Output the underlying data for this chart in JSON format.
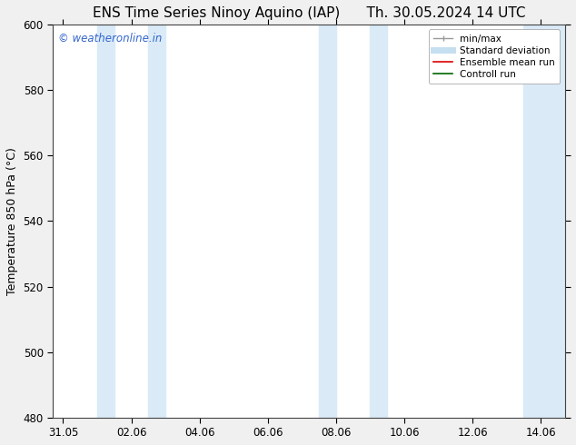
{
  "title_left": "ENS Time Series Ninoy Aquino (IAP)",
  "title_right": "Th. 30.05.2024 14 UTC",
  "ylabel": "Temperature 850 hPa (°C)",
  "ylim_bottom": 480,
  "ylim_top": 600,
  "yticks": [
    480,
    500,
    520,
    540,
    560,
    580,
    600
  ],
  "xtick_labels": [
    "31.05",
    "02.06",
    "04.06",
    "06.06",
    "08.06",
    "10.06",
    "12.06",
    "14.06"
  ],
  "xtick_positions": [
    0,
    2,
    4,
    6,
    8,
    10,
    12,
    14
  ],
  "xlim_min": -0.3,
  "xlim_max": 14.7,
  "bg_color": "#f0f0f0",
  "plot_bg_color": "#ffffff",
  "shaded_bands": [
    {
      "x_start": 1.0,
      "x_end": 1.5,
      "color": "#daeaf7"
    },
    {
      "x_start": 2.5,
      "x_end": 3.0,
      "color": "#daeaf7"
    },
    {
      "x_start": 7.5,
      "x_end": 8.0,
      "color": "#daeaf7"
    },
    {
      "x_start": 9.0,
      "x_end": 9.5,
      "color": "#daeaf7"
    },
    {
      "x_start": 13.5,
      "x_end": 14.7,
      "color": "#daeaf7"
    }
  ],
  "watermark_text": "© weatheronline.in",
  "watermark_color": "#3366cc",
  "legend_items": [
    {
      "label": "min/max",
      "color": "#999999",
      "lw": 1.0,
      "style": "solid"
    },
    {
      "label": "Standard deviation",
      "color": "#c5dff0",
      "lw": 5,
      "style": "solid"
    },
    {
      "label": "Ensemble mean run",
      "color": "#dd0000",
      "lw": 1.2,
      "style": "solid"
    },
    {
      "label": "Controll run",
      "color": "#006600",
      "lw": 1.2,
      "style": "solid"
    }
  ],
  "title_fontsize": 11,
  "axis_label_fontsize": 9,
  "tick_fontsize": 8.5,
  "legend_fontsize": 7.5
}
